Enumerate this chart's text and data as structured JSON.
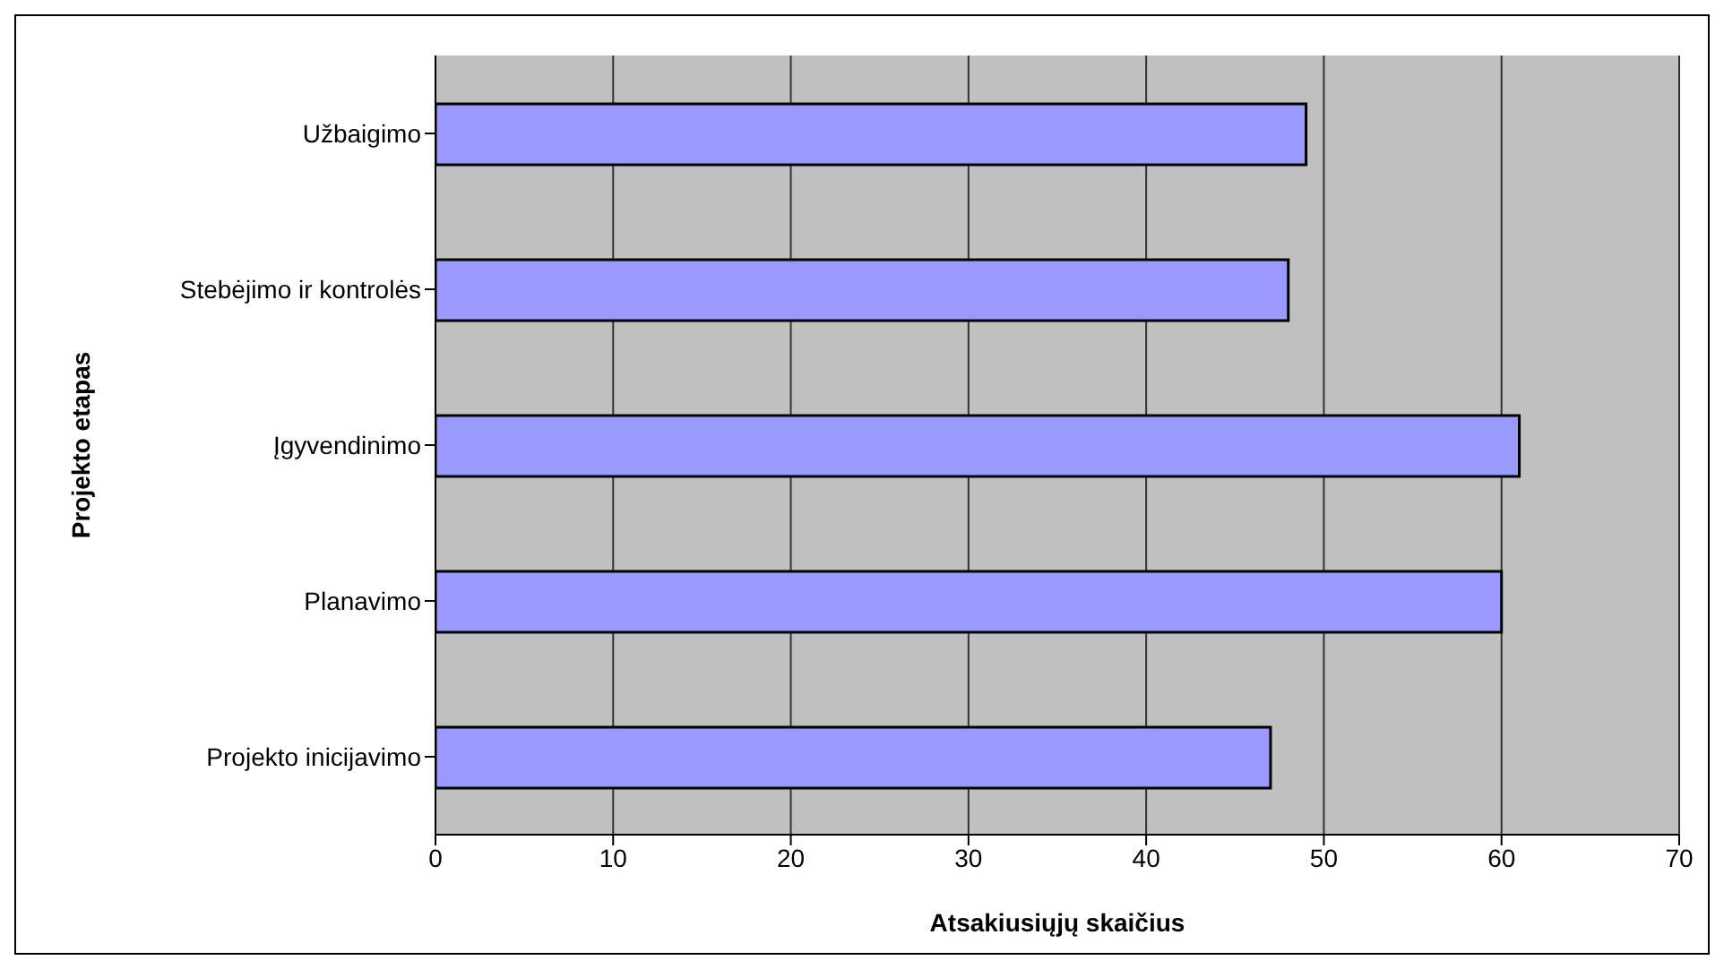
{
  "chart_data": {
    "type": "bar",
    "orientation": "horizontal",
    "xlabel": "Atsakiusiųjų skaičius",
    "ylabel": "Projekto etapas",
    "categories": [
      "Užbaigimo",
      "Stebėjimo ir kontrolės",
      "Įgyvendinimo",
      "Planavimo",
      "Projekto inicijavimo"
    ],
    "values": [
      49,
      48,
      61,
      60,
      47
    ],
    "color": "#9999ff",
    "xlim": [
      0,
      70
    ],
    "xticks": [
      0,
      10,
      20,
      30,
      40,
      50,
      60,
      70
    ],
    "grid": "x",
    "legend": false
  }
}
